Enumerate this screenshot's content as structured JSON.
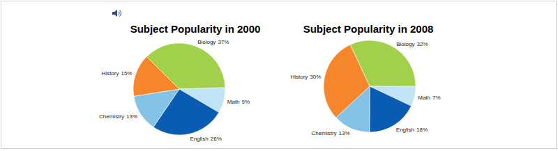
{
  "chart_data": [
    {
      "type": "pie",
      "title": "Subject Popularity in 2000",
      "categories": [
        "Biology",
        "Math",
        "English",
        "Chemistry",
        "History"
      ],
      "values": [
        37,
        9,
        26,
        13,
        15
      ],
      "value_labels": [
        "37%",
        "9%",
        "26%",
        "13%",
        "15%"
      ],
      "colors": [
        "#a2d04a",
        "#bfe4f6",
        "#0a5cb2",
        "#84c3e5",
        "#f5862b"
      ],
      "data_labels": true
    },
    {
      "type": "pie",
      "title": "Subject Popularity in 2008",
      "categories": [
        "Biology",
        "Math",
        "English",
        "Chemistry",
        "History"
      ],
      "values": [
        32,
        7,
        18,
        13,
        30
      ],
      "value_labels": [
        "32%",
        "7%",
        "18%",
        "13%",
        "30%"
      ],
      "colors": [
        "#a2d04a",
        "#bfe4f6",
        "#0a5cb2",
        "#84c3e5",
        "#f5862b"
      ],
      "data_labels": true
    }
  ]
}
